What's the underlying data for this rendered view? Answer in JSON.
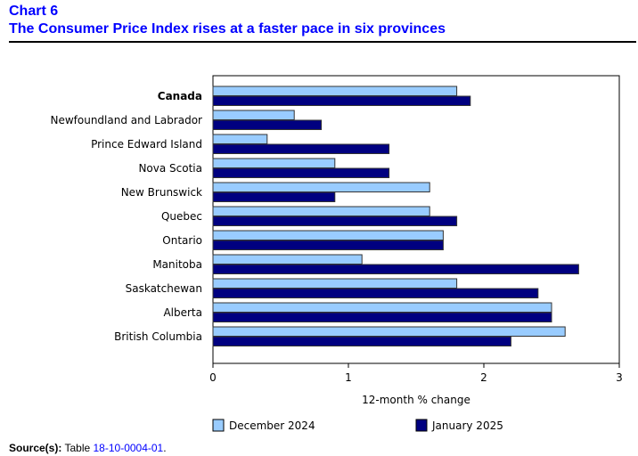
{
  "header": {
    "chart_number": "Chart 6",
    "title": "The Consumer Price Index rises at a faster pace in six provinces"
  },
  "colors": {
    "dec2024": "#99ccff",
    "jan2025": "#000080",
    "title": "#0000ff"
  },
  "chart_data": {
    "type": "bar",
    "orientation": "horizontal",
    "title": "The Consumer Price Index rises at a faster pace in six provinces",
    "categories": [
      "Canada",
      "Newfoundland and Labrador",
      "Prince Edward Island",
      "Nova Scotia",
      "New Brunswick",
      "Quebec",
      "Ontario",
      "Manitoba",
      "Saskatchewan",
      "Alberta",
      "British Columbia"
    ],
    "bold_categories": [
      "Canada"
    ],
    "series": [
      {
        "name": "December 2024",
        "color": "#99ccff",
        "values": [
          1.8,
          0.6,
          0.4,
          0.9,
          1.6,
          1.6,
          1.7,
          1.1,
          1.8,
          2.5,
          2.6
        ]
      },
      {
        "name": "January 2025",
        "color": "#000080",
        "values": [
          1.9,
          0.8,
          1.3,
          1.3,
          0.9,
          1.8,
          1.7,
          2.7,
          2.4,
          2.5,
          2.2
        ]
      }
    ],
    "xlabel": "12-month % change",
    "ylabel": "",
    "xlim": [
      0,
      3
    ],
    "xticks": [
      "0",
      "1",
      "2",
      "3"
    ],
    "grid": false,
    "legend_placement": "bottom"
  },
  "source": {
    "label": "Source(s):",
    "text": "Table",
    "link": "18-10-0004-01",
    "end": "."
  }
}
